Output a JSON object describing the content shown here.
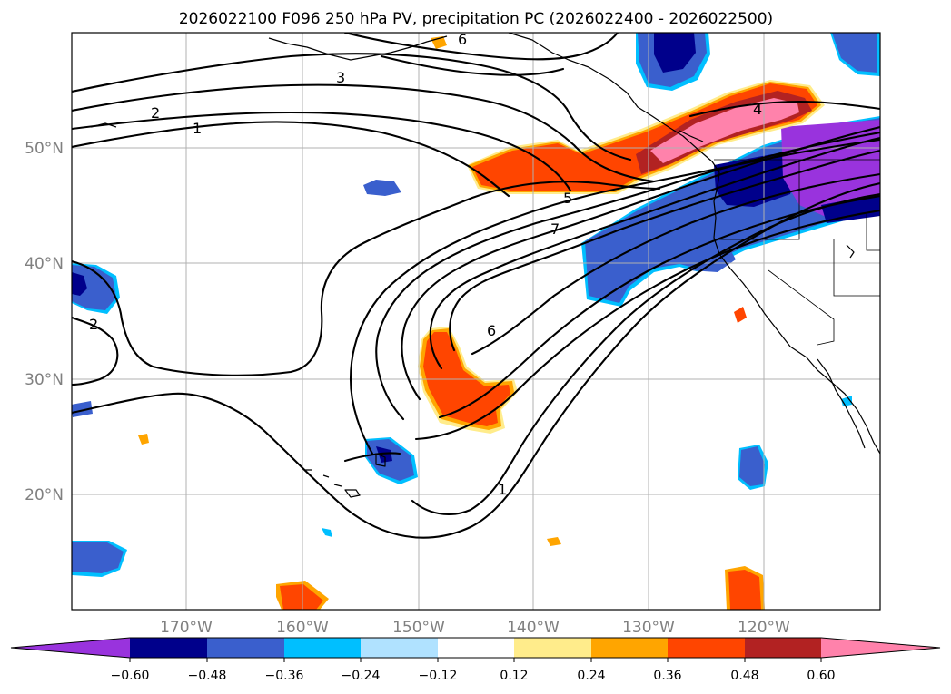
{
  "title": "2026022100 F096 250 hPa PV, precipitation PC (2026022400 - 2026022500)",
  "lat_labels": [
    "50°N",
    "40°N",
    "30°N",
    "20°N"
  ],
  "lon_labels": [
    "170°W",
    "160°W",
    "150°W",
    "140°W",
    "130°W",
    "120°W"
  ],
  "contour_labels": {
    "c1_north": "1",
    "c2_north": "2",
    "c3": "3",
    "c6_top": "6",
    "c4_east": "4",
    "c5_jet": "5",
    "c7_jet": "7",
    "c6_jet": "6",
    "c2_west": "2",
    "c1_south": "1"
  },
  "colorbar": {
    "ticks": [
      "−0.60",
      "−0.48",
      "−0.36",
      "−0.24",
      "−0.12",
      "0.12",
      "0.24",
      "0.36",
      "0.48",
      "0.60"
    ],
    "colors": {
      "below": "#9933dd",
      "b1": "#00008b",
      "b2": "#3a5fcd",
      "b3": "#00bfff",
      "b4": "#b0e2ff",
      "b5": "#ffffff",
      "b6": "#ffec8b",
      "b7": "#ffa500",
      "b8": "#ff4500",
      "b9": "#b22222",
      "above": "#ff82ab"
    }
  }
}
